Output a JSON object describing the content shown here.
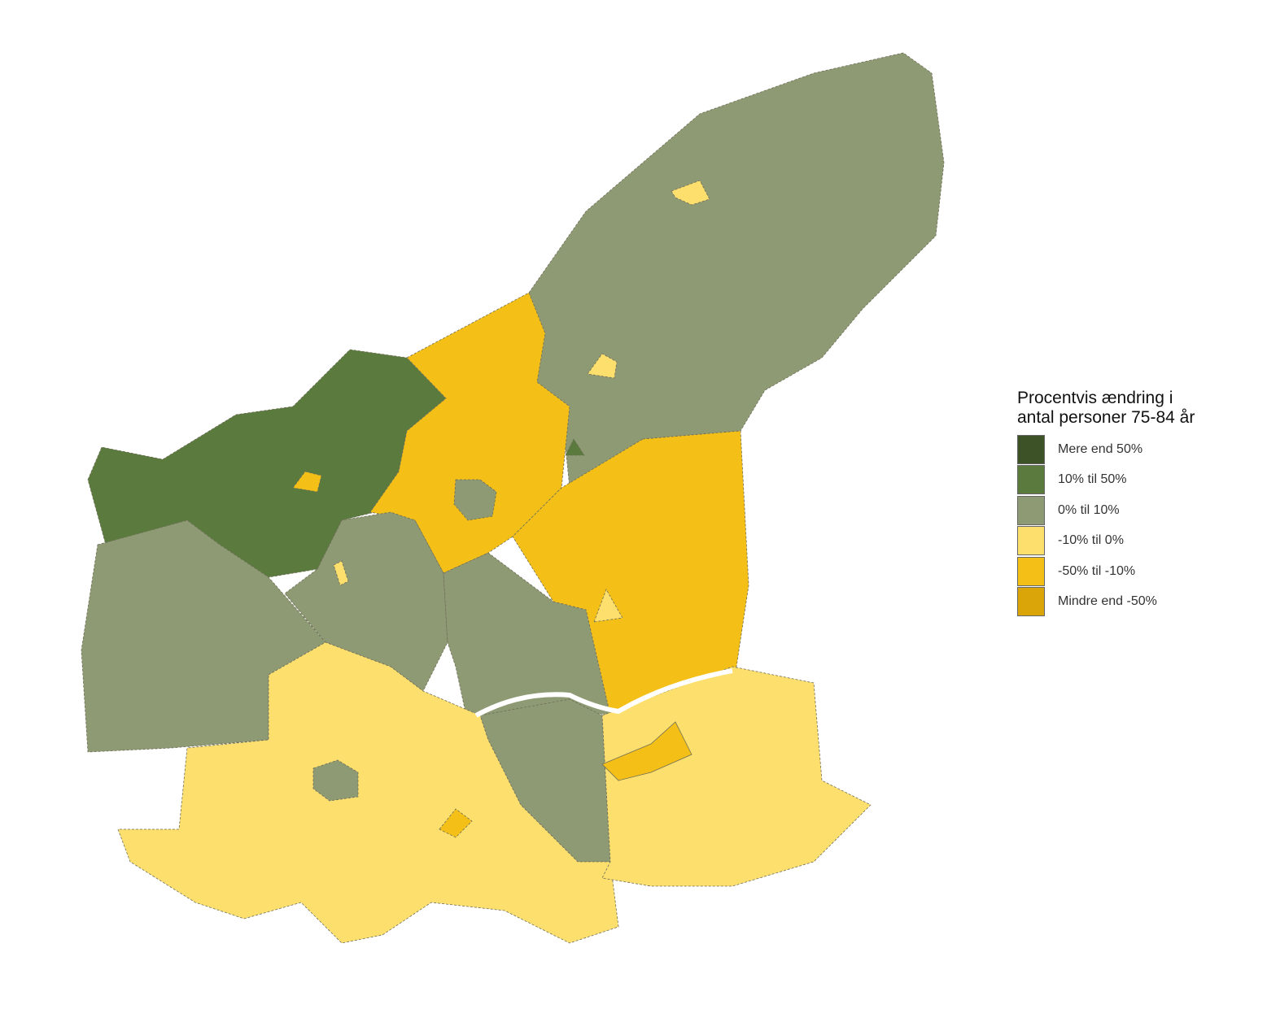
{
  "legend": {
    "title_line1": "Procentvis ændring i",
    "title_line2": "antal personer 75-84 år",
    "items": [
      {
        "label": "Mere end 50%",
        "color": "#3d5227"
      },
      {
        "label": "10% til 50%",
        "color": "#5b7a3d"
      },
      {
        "label": "0% til 10%",
        "color": "#8e9a73"
      },
      {
        "label": "-10% til 0%",
        "color": "#fddf6d"
      },
      {
        "label": "-50% til -10%",
        "color": "#f4bf16"
      },
      {
        "label": "Mindre end -50%",
        "color": "#d9a509"
      }
    ]
  },
  "regions": [
    {
      "category": 2
    },
    {
      "category": 1
    },
    {
      "category": 4
    },
    {
      "category": 4
    },
    {
      "category": 2
    },
    {
      "category": 2
    },
    {
      "category": 2
    },
    {
      "category": 2
    },
    {
      "category": 3
    },
    {
      "category": 3
    },
    {
      "category": 3
    },
    {
      "category": 3
    },
    {
      "category": 2
    },
    {
      "category": 3
    },
    {
      "category": 2
    },
    {
      "category": 4
    },
    {
      "category": 4
    },
    {
      "category": 3
    },
    {
      "category": 1
    }
  ]
}
